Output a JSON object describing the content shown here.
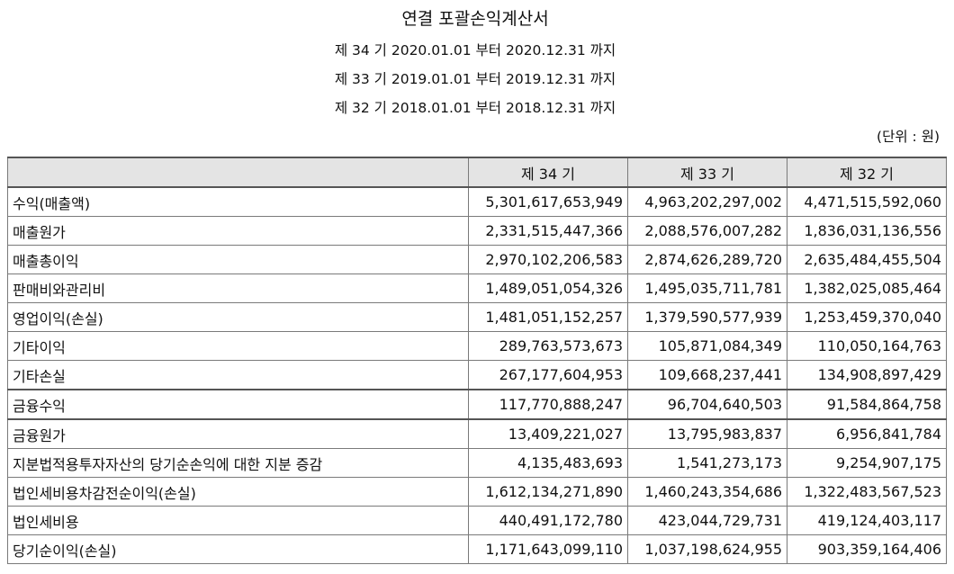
{
  "document": {
    "title": "연결 포괄손익계산서",
    "periods": [
      "제 34 기 2020.01.01 부터 2020.12.31 까지",
      "제 33 기 2019.01.01 부터 2019.12.31 까지",
      "제 32 기 2018.01.01 부터 2018.12.31 까지"
    ],
    "unit": "(단위 : 원)"
  },
  "table": {
    "headers": [
      "",
      "제 34 기",
      "제 33 기",
      "제 32 기"
    ],
    "rows": [
      {
        "label": "수익(매출액)",
        "values": [
          "5,301,617,653,949",
          "4,963,202,297,002",
          "4,471,515,592,060"
        ]
      },
      {
        "label": "매출원가",
        "values": [
          "2,331,515,447,366",
          "2,088,576,007,282",
          "1,836,031,136,556"
        ]
      },
      {
        "label": "매출총이익",
        "values": [
          "2,970,102,206,583",
          "2,874,626,289,720",
          "2,635,484,455,504"
        ]
      },
      {
        "label": "판매비와관리비",
        "values": [
          "1,489,051,054,326",
          "1,495,035,711,781",
          "1,382,025,085,464"
        ]
      },
      {
        "label": "영업이익(손실)",
        "values": [
          "1,481,051,152,257",
          "1,379,590,577,939",
          "1,253,459,370,040"
        ]
      },
      {
        "label": "기타이익",
        "values": [
          "289,763,573,673",
          "105,871,084,349",
          "110,050,164,763"
        ]
      },
      {
        "label": "기타손실",
        "values": [
          "267,177,604,953",
          "109,668,237,441",
          "134,908,897,429"
        ]
      },
      {
        "label": "금융수익",
        "values": [
          "117,770,888,247",
          "96,704,640,503",
          "91,584,864,758"
        ]
      },
      {
        "label": "금융원가",
        "values": [
          "13,409,221,027",
          "13,795,983,837",
          "6,956,841,784"
        ]
      },
      {
        "label": "지분법적용투자자산의 당기순손익에 대한 지분 증감",
        "values": [
          "4,135,483,693",
          "1,541,273,173",
          "9,254,907,175"
        ]
      },
      {
        "label": "법인세비용차감전순이익(손실)",
        "values": [
          "1,612,134,271,890",
          "1,460,243,354,686",
          "1,322,483,567,523"
        ]
      },
      {
        "label": "법인세비용",
        "values": [
          "440,491,172,780",
          "423,044,729,731",
          "419,124,403,117"
        ]
      },
      {
        "label": "당기순이익(손실)",
        "values": [
          "1,171,643,099,110",
          "1,037,198,624,955",
          "903,359,164,406"
        ]
      }
    ]
  }
}
